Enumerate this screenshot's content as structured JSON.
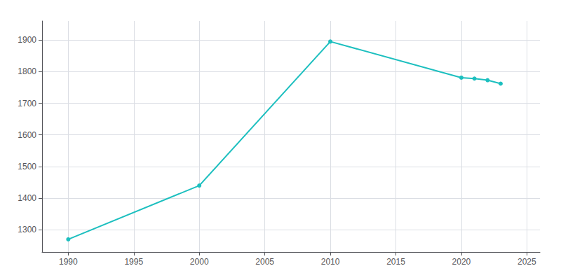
{
  "chart_data": {
    "type": "line",
    "x": [
      1990,
      2000,
      2010,
      2020,
      2021,
      2022,
      2023
    ],
    "values": [
      1270,
      1440,
      1895,
      1781,
      1778,
      1773,
      1762
    ],
    "color": "#1cbfbf",
    "marker": "circle",
    "xlim": [
      1988,
      2026
    ],
    "xticks": [
      1990,
      1995,
      2000,
      2005,
      2010,
      2015,
      2020,
      2025
    ],
    "ylim": [
      1230,
      1960
    ],
    "yticks": [
      1300,
      1400,
      1500,
      1600,
      1700,
      1800,
      1900
    ],
    "grid": true
  }
}
